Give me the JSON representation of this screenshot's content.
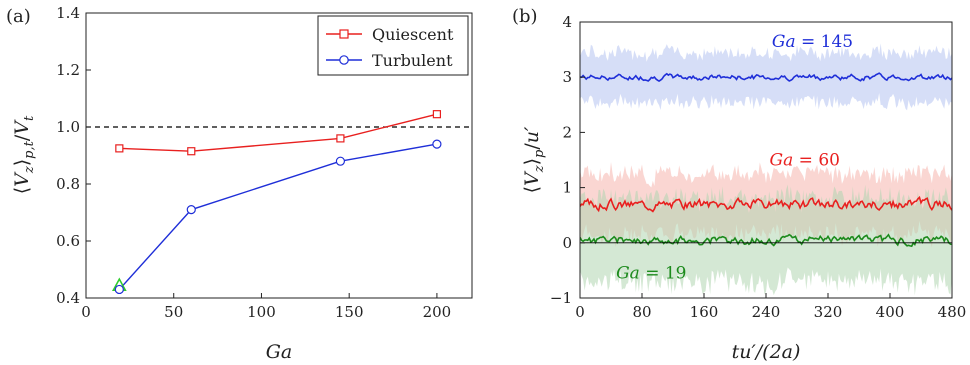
{
  "chart_data": [
    {
      "panel": "(a)",
      "type": "line",
      "xlabel": "Ga",
      "ylabel": "⟨V_z⟩_{p,t}/V_t",
      "xlim": [
        0,
        220
      ],
      "ylim": [
        0.4,
        1.4
      ],
      "xticks": [
        0,
        50,
        100,
        150,
        200
      ],
      "yticks": [
        0.4,
        0.6,
        0.8,
        1.0,
        1.2,
        1.4
      ],
      "xtick_labels": [
        "0",
        "50",
        "100",
        "150",
        "200"
      ],
      "ytick_labels": [
        "0.4",
        "0.6",
        "0.8",
        "1.0",
        "1.2",
        "1.4"
      ],
      "reference_line": {
        "y": 1.0,
        "style": "dashed",
        "color": "#000000"
      },
      "legend": {
        "position": "top-right"
      },
      "series": [
        {
          "name": "Quiescent",
          "color": "#e8201f",
          "marker": "square",
          "x": [
            19,
            60,
            145,
            200
          ],
          "y": [
            0.925,
            0.915,
            0.96,
            1.045
          ]
        },
        {
          "name": "Turbulent",
          "color": "#1f2fd8",
          "marker": "circle",
          "x": [
            19,
            60,
            145,
            200
          ],
          "y": [
            0.43,
            0.71,
            0.88,
            0.94
          ]
        }
      ],
      "extra_markers": [
        {
          "shape": "triangle",
          "color": "#2ecc2e",
          "x": 19,
          "y": 0.445
        }
      ]
    },
    {
      "panel": "(b)",
      "type": "line",
      "xlabel": "tu′/(2a)",
      "ylabel": "⟨V_z⟩_p/u′",
      "xlim": [
        0,
        480
      ],
      "ylim": [
        -1,
        4
      ],
      "xticks": [
        0,
        80,
        160,
        240,
        320,
        400,
        480
      ],
      "yticks": [
        -1,
        0,
        1,
        2,
        3,
        4
      ],
      "xtick_labels": [
        "0",
        "80",
        "160",
        "240",
        "320",
        "400",
        "480"
      ],
      "ytick_labels": [
        "−1",
        "0",
        "1",
        "2",
        "3",
        "4"
      ],
      "reference_line": {
        "y": 0,
        "style": "solid",
        "color": "#000000"
      },
      "series": [
        {
          "name": "Ga = 145",
          "color": "#1f2fd8",
          "band_color": "#b4c2f0",
          "mean": 3.0,
          "fluct": 0.04,
          "band": 0.45,
          "seed": 7
        },
        {
          "name": "Ga = 60",
          "color": "#e8201f",
          "band_color": "#f5b4ad",
          "mean": 0.7,
          "fluct": 0.07,
          "band": 0.55,
          "seed": 3
        },
        {
          "name": "Ga = 19",
          "color": "#1c8a1c",
          "band_color": "#b0d6b0",
          "mean": 0.05,
          "fluct": 0.06,
          "band": 0.75,
          "seed": 11
        }
      ],
      "annotations": [
        {
          "text": "Ga = 145",
          "color": "#1f2fd8",
          "x": 300,
          "y": 3.55
        },
        {
          "text": "Ga = 60",
          "color": "#e8201f",
          "x": 290,
          "y": 1.4
        },
        {
          "text": "Ga = 19",
          "color": "#1c8a1c",
          "x": 92,
          "y": -0.65
        }
      ]
    }
  ]
}
